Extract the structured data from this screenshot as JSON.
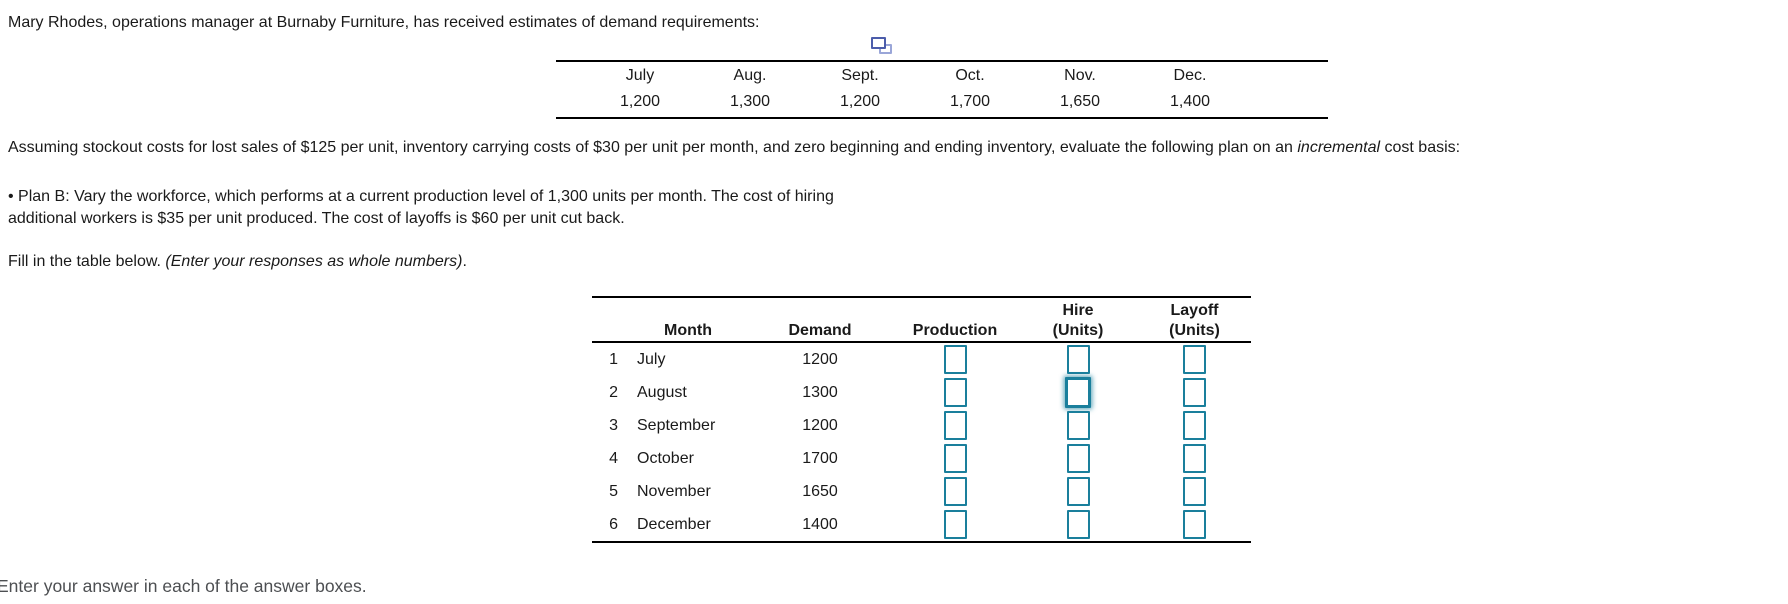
{
  "intro": "Mary Rhodes, operations manager at Burnaby Furniture, has received estimates of demand requirements:",
  "demand_table": {
    "months": [
      "July",
      "Aug.",
      "Sept.",
      "Oct.",
      "Nov.",
      "Dec."
    ],
    "values": [
      "1,200",
      "1,300",
      "1,200",
      "1,700",
      "1,650",
      "1,400"
    ]
  },
  "assumptions": {
    "part1": "Assuming stockout costs for lost sales of $125 per unit, inventory carrying costs of $30 per unit per month, and zero beginning and ending inventory, evaluate the following plan on an ",
    "italic": "incremental",
    "part2": " cost basis:"
  },
  "plan": {
    "line1": "• Plan B: Vary the workforce, which performs at a current production level of 1,300 units per month. The cost of hiring",
    "line2": "additional workers is $35 per unit produced. The cost of layoffs is $60 per unit cut back."
  },
  "instruction": {
    "normal": "Fill in the table below. ",
    "italic": "(Enter your responses as whole numbers)",
    "period": "."
  },
  "fill_table": {
    "headers": {
      "month": "Month",
      "demand": "Demand",
      "production": "Production",
      "hire_line1": "Hire",
      "hire_line2": "(Units)",
      "layoff_line1": "Layoff",
      "layoff_line2": "(Units)"
    },
    "rows": [
      {
        "num": "1",
        "month": "July",
        "demand": "1200",
        "production": "",
        "hire": "",
        "layoff": ""
      },
      {
        "num": "2",
        "month": "August",
        "demand": "1300",
        "production": "",
        "hire": "",
        "layoff": ""
      },
      {
        "num": "3",
        "month": "September",
        "demand": "1200",
        "production": "",
        "hire": "",
        "layoff": ""
      },
      {
        "num": "4",
        "month": "October",
        "demand": "1700",
        "production": "",
        "hire": "",
        "layoff": ""
      },
      {
        "num": "5",
        "month": "November",
        "demand": "1650",
        "production": "",
        "hire": "",
        "layoff": ""
      },
      {
        "num": "6",
        "month": "December",
        "demand": "1400",
        "production": "",
        "hire": "",
        "layoff": ""
      }
    ]
  },
  "footer": "Enter your answer in each of the answer boxes.",
  "icons": {
    "copy_icon": "copy-icon"
  },
  "colors": {
    "input_border": "#1a7f9c",
    "rule": "#000000",
    "footer_text": "#4d4f52",
    "icon_front": "#4c5dab",
    "icon_back": "#9aa6d8"
  }
}
